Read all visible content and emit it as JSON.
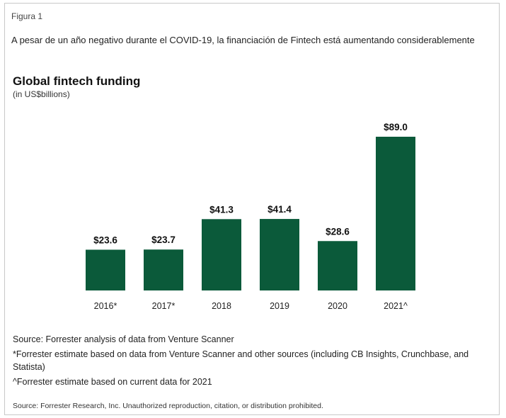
{
  "figure": {
    "label": "Figura 1",
    "caption": "A pesar de un año negativo durante el COVID-19, la financiación de Fintech está aumentando considerablemente"
  },
  "chart_data": {
    "type": "bar",
    "title": "Global fintech funding",
    "subtitle": "(in US$billions)",
    "categories": [
      "2016*",
      "2017*",
      "2018",
      "2019",
      "2020",
      "2021^"
    ],
    "values": [
      23.6,
      23.7,
      41.3,
      41.4,
      28.6,
      89.0
    ],
    "data_labels": [
      "$23.6",
      "$23.7",
      "$41.3",
      "$41.4",
      "$28.6",
      "$89.0"
    ],
    "xlabel": "",
    "ylabel": "",
    "ylim": [
      0,
      89.0
    ],
    "grid": false,
    "bar_color": "#0b5a3a"
  },
  "notes": {
    "source": "Source: Forrester analysis of data from Venture Scanner",
    "asterisk": "*Forrester estimate based on data from Venture Scanner and other sources (including CB Insights, Crunchbase, and Statista)",
    "caret": "^Forrester estimate based on current data for 2021"
  },
  "copyright": "Source: Forrester Research, Inc. Unauthorized reproduction, citation, or distribution prohibited."
}
